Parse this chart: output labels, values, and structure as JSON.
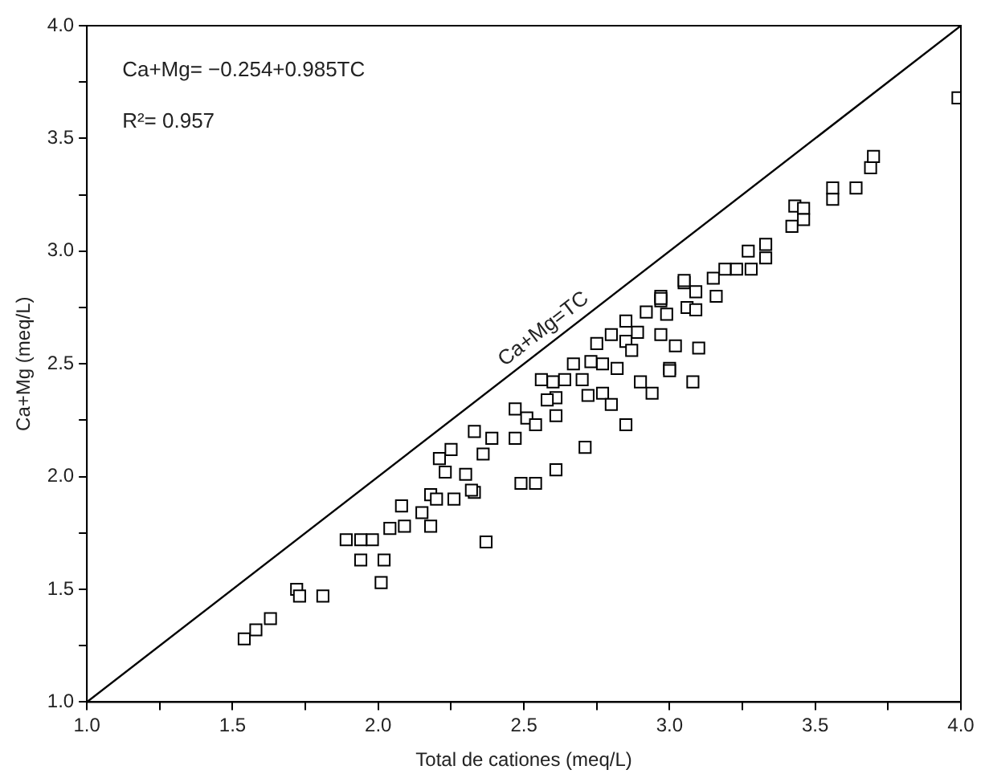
{
  "chart_data": {
    "type": "scatter",
    "xlabel": "Total de cationes (meq/L)",
    "ylabel": "Ca+Mg (meq/L)",
    "xlim": [
      1,
      4
    ],
    "ylim": [
      1,
      4
    ],
    "xticks": [
      {
        "value": 1,
        "label": "1.0"
      },
      {
        "value": 1.25,
        "label": null
      },
      {
        "value": 1.5,
        "label": "1.5"
      },
      {
        "value": 1.75,
        "label": null
      },
      {
        "value": 2,
        "label": "2.0"
      },
      {
        "value": 2.25,
        "label": null
      },
      {
        "value": 2.5,
        "label": "2.5"
      },
      {
        "value": 2.75,
        "label": null
      },
      {
        "value": 3,
        "label": "3.0"
      },
      {
        "value": 3.25,
        "label": null
      },
      {
        "value": 3.5,
        "label": "3.5"
      },
      {
        "value": 3.75,
        "label": null
      },
      {
        "value": 4,
        "label": "4.0"
      }
    ],
    "yticks": [
      {
        "value": 1,
        "label": "1.0"
      },
      {
        "value": 1.25,
        "label": null
      },
      {
        "value": 1.5,
        "label": "1.5"
      },
      {
        "value": 1.75,
        "label": null
      },
      {
        "value": 2,
        "label": "2.0"
      },
      {
        "value": 2.25,
        "label": null
      },
      {
        "value": 2.5,
        "label": "2.5"
      },
      {
        "value": 2.75,
        "label": null
      },
      {
        "value": 3,
        "label": "3.0"
      },
      {
        "value": 3.25,
        "label": null
      },
      {
        "value": 3.5,
        "label": "3.5"
      },
      {
        "value": 3.75,
        "label": null
      },
      {
        "value": 4,
        "label": "4.0"
      }
    ],
    "grid": false,
    "legend": false,
    "marker": "square",
    "annotations": [
      "Ca+Mg= −0.254+0.985TC",
      "R²= 0.957",
      {
        "text": "Ca+Mg=TC",
        "x": 2.6,
        "y": 2.6
      }
    ],
    "series": [
      {
        "color": "#000000",
        "x": [
          1.54,
          1.58,
          1.63,
          1.72,
          1.73,
          1.81,
          1.89,
          1.94,
          1.98,
          1.94,
          2.02,
          2.01,
          2.04,
          2.08,
          2.09,
          2.18,
          2.15,
          2.18,
          2.2,
          2.26,
          2.33,
          2.23,
          2.3,
          2.37,
          2.25,
          2.21,
          2.32,
          2.33,
          2.39,
          2.36,
          2.47,
          2.47,
          2.51,
          2.54,
          2.49,
          2.54,
          2.61,
          2.6,
          2.61,
          2.61,
          2.7,
          2.72,
          2.77,
          2.77,
          2.8,
          2.71,
          2.85,
          2.67,
          2.73,
          2.82,
          2.85,
          2.89,
          2.87,
          2.92,
          2.97,
          2.99,
          3.0,
          2.9,
          2.94,
          2.97,
          3.02,
          3.05,
          2.56,
          2.58,
          2.64,
          2.75,
          2.8,
          2.85,
          2.97,
          3.69,
          3.7,
          3.56,
          3.56,
          3.64,
          3.43,
          3.46,
          3.46,
          3.42,
          3.33,
          3.27,
          3.33,
          3.28,
          3.23,
          3.19,
          3.15,
          3.05,
          3.09,
          3.16,
          2.97,
          3.06,
          3.09,
          3.1,
          3.08,
          3.0,
          3.99
        ],
        "values": [
          1.28,
          1.32,
          1.37,
          1.5,
          1.47,
          1.47,
          1.72,
          1.72,
          1.72,
          1.63,
          1.63,
          1.53,
          1.77,
          1.87,
          1.78,
          1.78,
          1.84,
          1.92,
          1.9,
          1.9,
          1.93,
          2.02,
          2.01,
          1.71,
          2.12,
          2.08,
          1.94,
          2.2,
          2.17,
          2.1,
          2.3,
          2.17,
          2.26,
          2.23,
          1.97,
          1.97,
          2.03,
          2.42,
          2.35,
          2.27,
          2.43,
          2.36,
          2.5,
          2.37,
          2.32,
          2.13,
          2.23,
          2.5,
          2.51,
          2.48,
          2.6,
          2.64,
          2.56,
          2.73,
          2.63,
          2.72,
          2.48,
          2.42,
          2.37,
          2.8,
          2.58,
          2.86,
          2.43,
          2.34,
          2.43,
          2.59,
          2.63,
          2.69,
          2.78,
          3.37,
          3.42,
          3.28,
          3.23,
          3.28,
          3.2,
          3.19,
          3.14,
          3.11,
          3.03,
          3.0,
          2.97,
          2.92,
          2.92,
          2.92,
          2.88,
          2.87,
          2.82,
          2.8,
          2.79,
          2.75,
          2.74,
          2.57,
          2.42,
          2.47,
          3.68
        ]
      },
      {
        "type": "line",
        "color": "#000000",
        "marker": "none",
        "line_style": "solid",
        "x": [
          1,
          4
        ],
        "values": [
          1,
          4
        ]
      }
    ]
  }
}
